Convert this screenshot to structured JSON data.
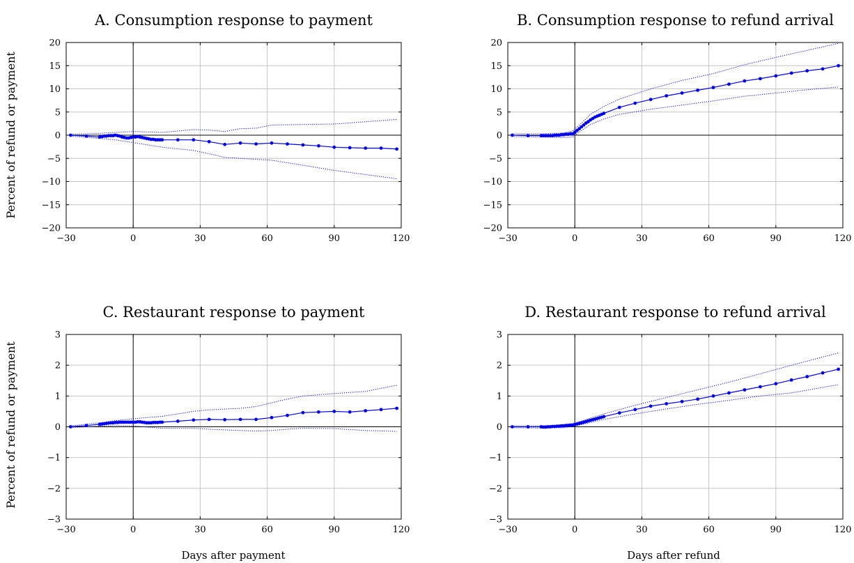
{
  "figure": {
    "ylabel": "Percent of refund or payment",
    "xlabel_left": "Days after payment",
    "xlabel_right": "Days after refund"
  },
  "chart_data": [
    {
      "type": "line",
      "title": "A. Consumption response to payment",
      "xlim": [
        -30,
        120
      ],
      "ylim": [
        -20,
        20
      ],
      "xticks": [
        -30,
        0,
        30,
        60,
        90,
        120
      ],
      "xtick_labels": [
        "−30",
        "0",
        "30",
        "60",
        "90",
        "120"
      ],
      "yticks": [
        -20,
        -15,
        -10,
        -5,
        0,
        5,
        10,
        15,
        20
      ],
      "ytick_labels": [
        "−20",
        "−15",
        "−10",
        "−5",
        "0",
        "5",
        "10",
        "15",
        "20"
      ],
      "grid": true,
      "estimate": {
        "x": [
          -28,
          -21,
          -15,
          -14,
          -13,
          -12,
          -11,
          -10,
          -9,
          -8,
          -7,
          -6,
          -5,
          -4,
          -3,
          -2,
          -1,
          0,
          1,
          2,
          3,
          4,
          5,
          6,
          7,
          8,
          9,
          10,
          11,
          12,
          13,
          20,
          27,
          34,
          41,
          48,
          55,
          62,
          69,
          76,
          83,
          90,
          97,
          104,
          111,
          118
        ],
        "y": [
          0.0,
          -0.2,
          -0.4,
          -0.3,
          -0.2,
          -0.2,
          -0.1,
          -0.1,
          -0.1,
          0.0,
          -0.1,
          -0.2,
          -0.4,
          -0.5,
          -0.6,
          -0.6,
          -0.5,
          -0.4,
          -0.4,
          -0.3,
          -0.4,
          -0.5,
          -0.6,
          -0.7,
          -0.8,
          -0.9,
          -0.9,
          -1.0,
          -1.0,
          -1.0,
          -1.0,
          -1.0,
          -1.0,
          -1.4,
          -2.0,
          -1.7,
          -1.9,
          -1.7,
          -1.9,
          -2.1,
          -2.3,
          -2.6,
          -2.7,
          -2.8,
          -2.8,
          -3.0
        ]
      },
      "upper": {
        "x": [
          -28,
          -15,
          -8,
          0,
          13,
          27,
          34,
          41,
          48,
          55,
          62,
          90,
          118
        ],
        "y": [
          0.2,
          0.4,
          0.6,
          0.8,
          0.6,
          1.2,
          1.1,
          0.8,
          1.4,
          1.5,
          2.2,
          2.4,
          3.4
        ]
      },
      "lower": {
        "x": [
          -28,
          -15,
          -8,
          0,
          13,
          27,
          34,
          41,
          48,
          55,
          62,
          90,
          118
        ],
        "y": [
          -0.2,
          -0.7,
          -1.0,
          -1.6,
          -2.6,
          -3.3,
          -4.0,
          -4.8,
          -5.0,
          -5.2,
          -5.4,
          -7.6,
          -9.4
        ]
      }
    },
    {
      "type": "line",
      "title": "B. Consumption response to refund arrival",
      "xlim": [
        -30,
        120
      ],
      "ylim": [
        -20,
        20
      ],
      "xticks": [
        -30,
        0,
        30,
        60,
        90,
        120
      ],
      "xtick_labels": [
        "−30",
        "0",
        "30",
        "60",
        "90",
        "120"
      ],
      "yticks": [
        -20,
        -15,
        -10,
        -5,
        0,
        5,
        10,
        15,
        20
      ],
      "ytick_labels": [
        "−20",
        "−15",
        "−10",
        "−5",
        "0",
        "5",
        "10",
        "15",
        "20"
      ],
      "grid": true,
      "estimate": {
        "x": [
          -28,
          -21,
          -15,
          -14,
          -13,
          -12,
          -11,
          -10,
          -9,
          -8,
          -7,
          -6,
          -5,
          -4,
          -3,
          -2,
          -1,
          0,
          1,
          2,
          3,
          4,
          5,
          6,
          7,
          8,
          9,
          10,
          11,
          12,
          13,
          20,
          27,
          34,
          41,
          48,
          55,
          62,
          69,
          76,
          83,
          90,
          97,
          104,
          111,
          118
        ],
        "y": [
          0.0,
          -0.1,
          -0.1,
          -0.1,
          -0.1,
          -0.1,
          -0.1,
          -0.1,
          0.0,
          0.0,
          0.0,
          0.1,
          0.1,
          0.2,
          0.2,
          0.3,
          0.3,
          0.6,
          1.0,
          1.4,
          1.8,
          2.2,
          2.6,
          2.9,
          3.3,
          3.6,
          3.9,
          4.1,
          4.3,
          4.5,
          4.7,
          6.0,
          6.9,
          7.7,
          8.5,
          9.1,
          9.7,
          10.3,
          11.0,
          11.7,
          12.2,
          12.8,
          13.4,
          13.9,
          14.3,
          15.0
        ]
      },
      "upper": {
        "x": [
          -28,
          -15,
          -5,
          -1,
          3,
          7,
          13,
          20,
          34,
          48,
          62,
          76,
          90,
          104,
          118
        ],
        "y": [
          0.3,
          0.3,
          0.5,
          0.9,
          2.6,
          4.5,
          6.2,
          7.8,
          10.0,
          11.8,
          13.3,
          15.2,
          16.8,
          18.3,
          19.8
        ]
      },
      "lower": {
        "x": [
          -28,
          -15,
          -5,
          -1,
          3,
          7,
          13,
          20,
          34,
          48,
          62,
          76,
          90,
          104,
          118
        ],
        "y": [
          -0.3,
          -0.4,
          -0.5,
          -0.4,
          1.0,
          2.3,
          3.5,
          4.5,
          5.6,
          6.5,
          7.4,
          8.4,
          9.1,
          9.8,
          10.4
        ]
      }
    },
    {
      "type": "line",
      "title": "C. Restaurant response to payment",
      "xlim": [
        -30,
        120
      ],
      "ylim": [
        -3,
        3
      ],
      "xticks": [
        -30,
        0,
        30,
        60,
        90,
        120
      ],
      "xtick_labels": [
        "−30",
        "0",
        "30",
        "60",
        "90",
        "120"
      ],
      "yticks": [
        -3,
        -2,
        -1,
        0,
        1,
        2,
        3
      ],
      "ytick_labels": [
        "−3",
        "−2",
        "−1",
        "0",
        "1",
        "2",
        "3"
      ],
      "grid": true,
      "estimate": {
        "x": [
          -28,
          -21,
          -15,
          -14,
          -13,
          -12,
          -11,
          -10,
          -9,
          -8,
          -7,
          -6,
          -5,
          -4,
          -3,
          -2,
          -1,
          0,
          1,
          2,
          3,
          4,
          5,
          6,
          7,
          8,
          9,
          10,
          11,
          12,
          13,
          20,
          27,
          34,
          41,
          48,
          55,
          62,
          69,
          76,
          83,
          90,
          97,
          104,
          111,
          118
        ],
        "y": [
          0.0,
          0.04,
          0.08,
          0.09,
          0.1,
          0.11,
          0.12,
          0.13,
          0.13,
          0.14,
          0.14,
          0.15,
          0.15,
          0.15,
          0.15,
          0.15,
          0.15,
          0.15,
          0.15,
          0.16,
          0.16,
          0.15,
          0.14,
          0.13,
          0.13,
          0.13,
          0.14,
          0.14,
          0.14,
          0.15,
          0.15,
          0.18,
          0.22,
          0.24,
          0.23,
          0.24,
          0.24,
          0.3,
          0.37,
          0.46,
          0.48,
          0.5,
          0.48,
          0.52,
          0.56,
          0.6
        ]
      },
      "upper": {
        "x": [
          -28,
          -15,
          -8,
          0,
          13,
          27,
          34,
          48,
          55,
          62,
          69,
          76,
          90,
          104,
          118
        ],
        "y": [
          0.03,
          0.13,
          0.2,
          0.26,
          0.34,
          0.5,
          0.55,
          0.6,
          0.66,
          0.78,
          0.9,
          1.0,
          1.08,
          1.15,
          1.35
        ]
      },
      "lower": {
        "x": [
          -28,
          -15,
          -8,
          0,
          13,
          27,
          34,
          48,
          55,
          62,
          69,
          76,
          90,
          104,
          118
        ],
        "y": [
          -0.03,
          0.02,
          0.04,
          0.03,
          -0.05,
          -0.05,
          -0.08,
          -0.12,
          -0.14,
          -0.12,
          -0.08,
          -0.05,
          -0.06,
          -0.12,
          -0.15
        ]
      }
    },
    {
      "type": "line",
      "title": "D. Restaurant response to refund arrival",
      "xlim": [
        -30,
        120
      ],
      "ylim": [
        -3,
        3
      ],
      "xticks": [
        -30,
        0,
        30,
        60,
        90,
        120
      ],
      "xtick_labels": [
        "−30",
        "0",
        "30",
        "60",
        "90",
        "120"
      ],
      "yticks": [
        -3,
        -2,
        -1,
        0,
        1,
        2,
        3
      ],
      "ytick_labels": [
        "−3",
        "−2",
        "−1",
        "0",
        "1",
        "2",
        "3"
      ],
      "grid": true,
      "estimate": {
        "x": [
          -28,
          -21,
          -15,
          -14,
          -13,
          -12,
          -11,
          -10,
          -9,
          -8,
          -7,
          -6,
          -5,
          -4,
          -3,
          -2,
          -1,
          0,
          1,
          2,
          3,
          4,
          5,
          6,
          7,
          8,
          9,
          10,
          11,
          12,
          13,
          20,
          27,
          34,
          41,
          48,
          55,
          62,
          69,
          76,
          83,
          90,
          97,
          104,
          111,
          118
        ],
        "y": [
          0.0,
          0.0,
          0.0,
          -0.01,
          -0.01,
          0.0,
          0.0,
          0.01,
          0.01,
          0.02,
          0.02,
          0.03,
          0.03,
          0.04,
          0.04,
          0.05,
          0.05,
          0.07,
          0.09,
          0.11,
          0.13,
          0.15,
          0.17,
          0.19,
          0.21,
          0.23,
          0.25,
          0.27,
          0.29,
          0.31,
          0.33,
          0.45,
          0.56,
          0.67,
          0.75,
          0.82,
          0.9,
          1.0,
          1.1,
          1.2,
          1.3,
          1.4,
          1.52,
          1.63,
          1.75,
          1.87
        ]
      },
      "upper": {
        "x": [
          -28,
          -15,
          -5,
          0,
          13,
          27,
          41,
          55,
          69,
          83,
          97,
          118
        ],
        "y": [
          0.03,
          0.03,
          0.07,
          0.12,
          0.42,
          0.7,
          0.95,
          1.2,
          1.45,
          1.72,
          2.0,
          2.4
        ]
      },
      "lower": {
        "x": [
          -28,
          -15,
          -5,
          0,
          13,
          27,
          41,
          55,
          69,
          83,
          97,
          118
        ],
        "y": [
          -0.03,
          -0.04,
          -0.03,
          0.02,
          0.24,
          0.42,
          0.58,
          0.73,
          0.86,
          1.0,
          1.1,
          1.37
        ]
      }
    }
  ]
}
